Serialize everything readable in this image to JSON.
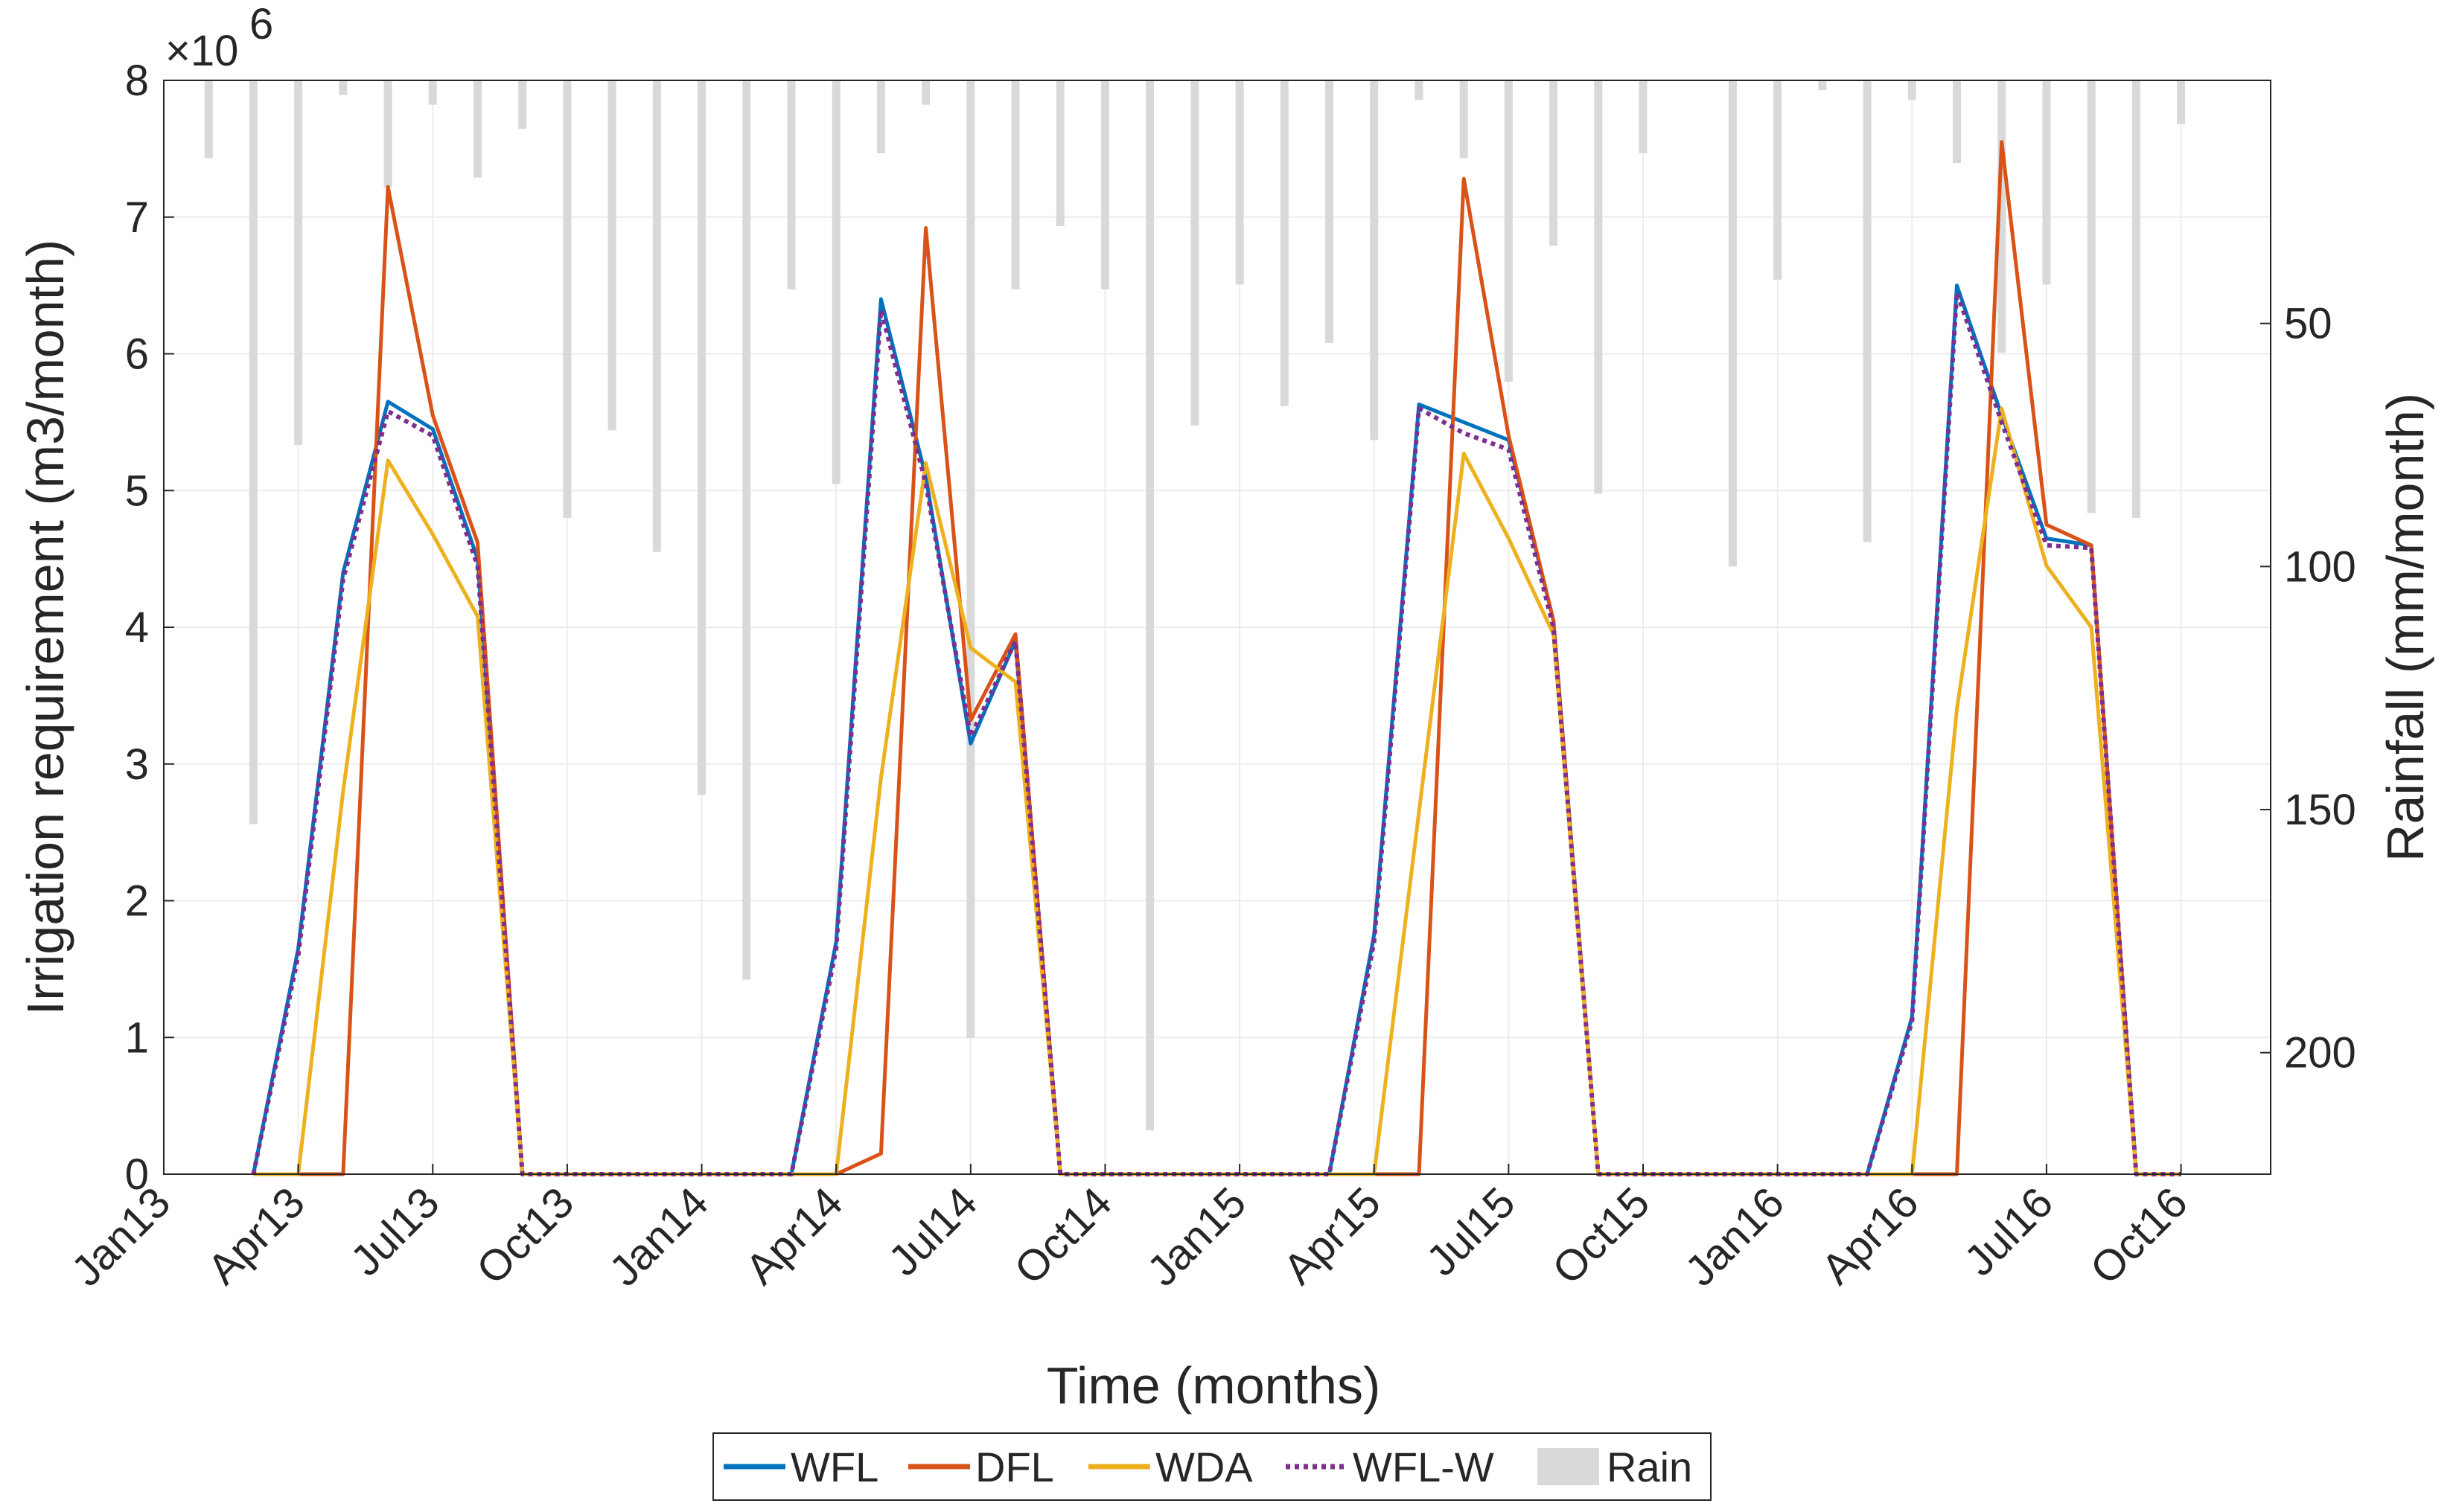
{
  "chart_data": {
    "type": "line",
    "xlabel": "Time (months)",
    "ylabel": "Irrigation requirement (m3/month)",
    "y2label": "Rainfall (mm/month)",
    "y_exponent_label": "×10",
    "y_exponent_power": "6",
    "ylim": [
      0,
      8
    ],
    "yticks": [
      "0",
      "1",
      "2",
      "3",
      "4",
      "5",
      "6",
      "7",
      "8"
    ],
    "y2lim": [
      0,
      225
    ],
    "y2_reversed": true,
    "y2ticks": [
      {
        "value": 50,
        "label": "50"
      },
      {
        "value": 100,
        "label": "100"
      },
      {
        "value": 150,
        "label": "150"
      },
      {
        "value": 200,
        "label": "200"
      }
    ],
    "xticks": [
      {
        "index": 0,
        "label": "Jan13"
      },
      {
        "index": 3,
        "label": "Apr13"
      },
      {
        "index": 6,
        "label": "Jul13"
      },
      {
        "index": 9,
        "label": "Oct13"
      },
      {
        "index": 12,
        "label": "Jan14"
      },
      {
        "index": 15,
        "label": "Apr14"
      },
      {
        "index": 18,
        "label": "Jul14"
      },
      {
        "index": 21,
        "label": "Oct14"
      },
      {
        "index": 24,
        "label": "Jan15"
      },
      {
        "index": 27,
        "label": "Apr15"
      },
      {
        "index": 30,
        "label": "Jul15"
      },
      {
        "index": 33,
        "label": "Oct15"
      },
      {
        "index": 36,
        "label": "Jan16"
      },
      {
        "index": 39,
        "label": "Apr16"
      },
      {
        "index": 42,
        "label": "Jul16"
      },
      {
        "index": 45,
        "label": "Oct16"
      }
    ],
    "xlim": [
      0,
      47
    ],
    "legend_position": "bottom-outside",
    "series": [
      {
        "name": "WFL",
        "color": "#0072BD",
        "style": "solid",
        "points": [
          [
            2,
            0
          ],
          [
            3,
            1.65
          ],
          [
            4,
            4.4
          ],
          [
            5,
            5.65
          ],
          [
            6,
            5.45
          ],
          [
            7,
            4.5
          ],
          [
            8,
            0
          ],
          [
            14,
            0
          ],
          [
            15,
            1.7
          ],
          [
            16,
            6.4
          ],
          [
            17,
            5.1
          ],
          [
            18,
            3.15
          ],
          [
            19,
            3.9
          ],
          [
            20,
            0
          ],
          [
            21,
            0
          ],
          [
            26,
            0
          ],
          [
            27,
            1.75
          ],
          [
            28,
            5.63
          ],
          [
            29,
            5.5
          ],
          [
            30,
            5.37
          ],
          [
            31,
            4.05
          ],
          [
            32,
            0
          ],
          [
            38,
            0
          ],
          [
            39,
            1.15
          ],
          [
            40,
            6.5
          ],
          [
            41,
            5.55
          ],
          [
            42,
            4.65
          ],
          [
            43,
            4.6
          ],
          [
            44,
            0
          ],
          [
            45,
            0
          ]
        ]
      },
      {
        "name": "DFL",
        "color": "#D95319",
        "style": "solid",
        "points": [
          [
            2,
            0
          ],
          [
            3,
            0
          ],
          [
            4,
            0
          ],
          [
            5,
            7.22
          ],
          [
            6,
            5.55
          ],
          [
            7,
            4.62
          ],
          [
            8,
            0
          ],
          [
            14,
            0
          ],
          [
            15,
            0
          ],
          [
            16,
            0.15
          ],
          [
            17,
            6.92
          ],
          [
            18,
            3.32
          ],
          [
            19,
            3.95
          ],
          [
            20,
            0
          ],
          [
            21,
            0
          ],
          [
            26,
            0
          ],
          [
            27,
            0
          ],
          [
            28,
            0
          ],
          [
            29,
            7.28
          ],
          [
            30,
            5.4
          ],
          [
            31,
            4.05
          ],
          [
            32,
            0
          ],
          [
            38,
            0
          ],
          [
            39,
            0
          ],
          [
            40,
            0
          ],
          [
            41,
            7.55
          ],
          [
            42,
            4.75
          ],
          [
            43,
            4.6
          ],
          [
            44,
            0
          ],
          [
            45,
            0
          ]
        ]
      },
      {
        "name": "WDA",
        "color": "#EDB120",
        "style": "solid",
        "points": [
          [
            2,
            0
          ],
          [
            3,
            0
          ],
          [
            4,
            2.8
          ],
          [
            5,
            5.22
          ],
          [
            6,
            4.68
          ],
          [
            7,
            4.08
          ],
          [
            8,
            0
          ],
          [
            14,
            0
          ],
          [
            15,
            0
          ],
          [
            16,
            2.9
          ],
          [
            17,
            5.2
          ],
          [
            18,
            3.85
          ],
          [
            19,
            3.6
          ],
          [
            20,
            0
          ],
          [
            21,
            0
          ],
          [
            26,
            0
          ],
          [
            27,
            0
          ],
          [
            28,
            2.65
          ],
          [
            29,
            5.27
          ],
          [
            30,
            4.65
          ],
          [
            31,
            3.95
          ],
          [
            32,
            0
          ],
          [
            38,
            0
          ],
          [
            39,
            0
          ],
          [
            40,
            3.4
          ],
          [
            41,
            5.6
          ],
          [
            42,
            4.45
          ],
          [
            43,
            4.0
          ],
          [
            44,
            0
          ],
          [
            45,
            0
          ]
        ]
      },
      {
        "name": "WFL-W",
        "color": "#7E2F8E",
        "style": "dotted",
        "points": [
          [
            2,
            0
          ],
          [
            3,
            1.6
          ],
          [
            4,
            4.35
          ],
          [
            5,
            5.58
          ],
          [
            6,
            5.4
          ],
          [
            7,
            4.45
          ],
          [
            8,
            0
          ],
          [
            14,
            0
          ],
          [
            15,
            1.65
          ],
          [
            16,
            6.32
          ],
          [
            17,
            5.05
          ],
          [
            18,
            3.2
          ],
          [
            19,
            3.9
          ],
          [
            20,
            0
          ],
          [
            21,
            0
          ],
          [
            26,
            0
          ],
          [
            27,
            1.7
          ],
          [
            28,
            5.6
          ],
          [
            29,
            5.42
          ],
          [
            30,
            5.3
          ],
          [
            31,
            4.0
          ],
          [
            32,
            0
          ],
          [
            38,
            0
          ],
          [
            39,
            1.12
          ],
          [
            40,
            6.45
          ],
          [
            41,
            5.5
          ],
          [
            42,
            4.6
          ],
          [
            43,
            4.58
          ],
          [
            44,
            0
          ],
          [
            45,
            0
          ]
        ]
      }
    ],
    "rain": {
      "name": "Rain",
      "color": "#D9D9D9",
      "x": [
        1,
        2,
        3,
        4,
        5,
        6,
        7,
        8,
        9,
        10,
        11,
        12,
        13,
        14,
        15,
        16,
        17,
        18,
        19,
        20,
        21,
        22,
        23,
        24,
        25,
        26,
        27,
        28,
        29,
        30,
        31,
        32,
        33,
        34,
        35,
        36,
        37,
        38,
        39,
        40,
        41,
        42,
        43,
        44,
        45,
        46
      ],
      "values": [
        16,
        153,
        75,
        3,
        22,
        5,
        20,
        10,
        90,
        72,
        97,
        147,
        185,
        43,
        83,
        15,
        5,
        197,
        43,
        30,
        43,
        216,
        71,
        42,
        67,
        54,
        74,
        4,
        16,
        62,
        34,
        85,
        15,
        0,
        100,
        41,
        2,
        95,
        4,
        17,
        56,
        42,
        89,
        90,
        9,
        0
      ]
    },
    "legend": [
      "WFL",
      "DFL",
      "WDA",
      "WFL-W",
      "Rain"
    ]
  }
}
